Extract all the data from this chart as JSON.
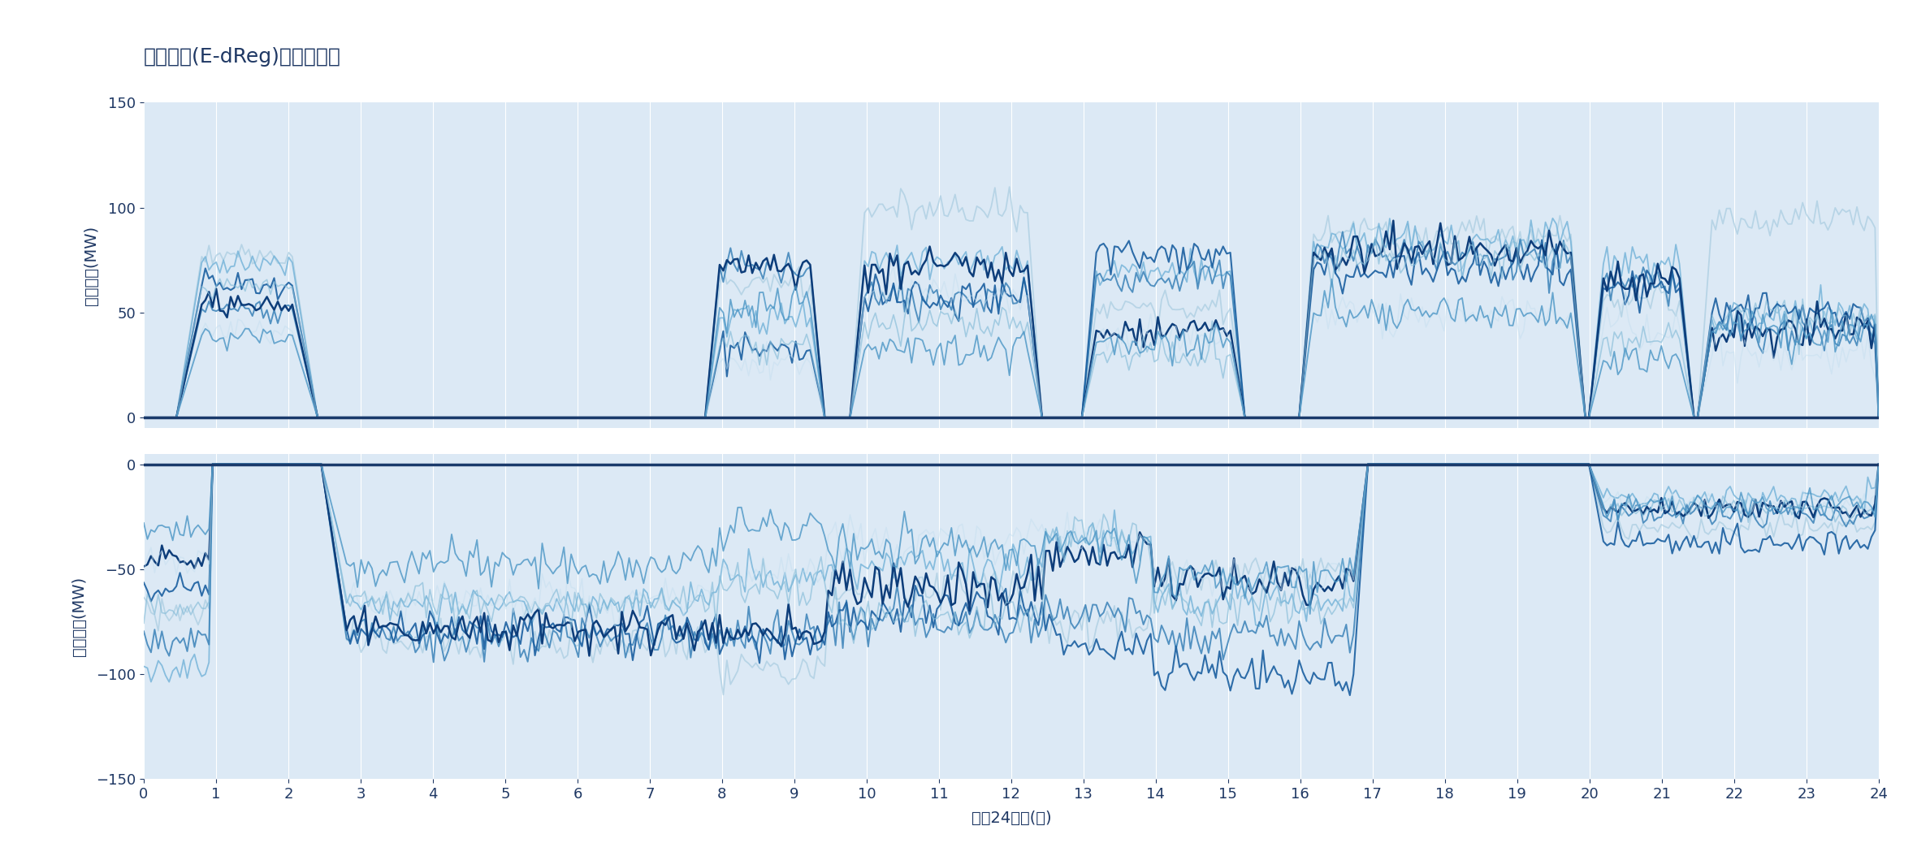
{
  "title": "台電電池(E-dReg)充放電輸出",
  "xlabel": "一天24小時(時)",
  "ylabel_discharge": "放電輸出(MW)",
  "ylabel_charge": "充電輸出(MW)",
  "xlim": [
    0,
    24
  ],
  "ylim_discharge": [
    -5,
    150
  ],
  "ylim_charge": [
    -150,
    5
  ],
  "yticks_discharge": [
    0,
    50,
    100,
    150
  ],
  "yticks_charge": [
    -150,
    -100,
    -50,
    0
  ],
  "xticks": [
    0,
    1,
    2,
    3,
    4,
    5,
    6,
    7,
    8,
    9,
    10,
    11,
    12,
    13,
    14,
    15,
    16,
    17,
    18,
    19,
    20,
    21,
    22,
    23,
    24
  ],
  "background_color": "#dce9f5",
  "figure_background": "#ffffff",
  "title_color": "#1f3864",
  "axis_label_color": "#1f3864",
  "tick_color": "#1f3864",
  "grid_color": "#ffffff",
  "zero_line_color": "#1a3a6b",
  "line_colors": [
    "#a8cce0",
    "#6aaed6",
    "#3a82b8",
    "#1a5fa0",
    "#0d3d7a",
    "#c5dff0",
    "#85bcd8",
    "#4a95c5"
  ],
  "alpha_values": [
    0.7,
    0.75,
    0.85,
    0.9,
    1.0,
    0.5,
    0.65,
    0.8
  ],
  "line_widths": [
    1.3,
    1.3,
    1.4,
    1.5,
    1.8,
    1.1,
    1.2,
    1.3
  ]
}
